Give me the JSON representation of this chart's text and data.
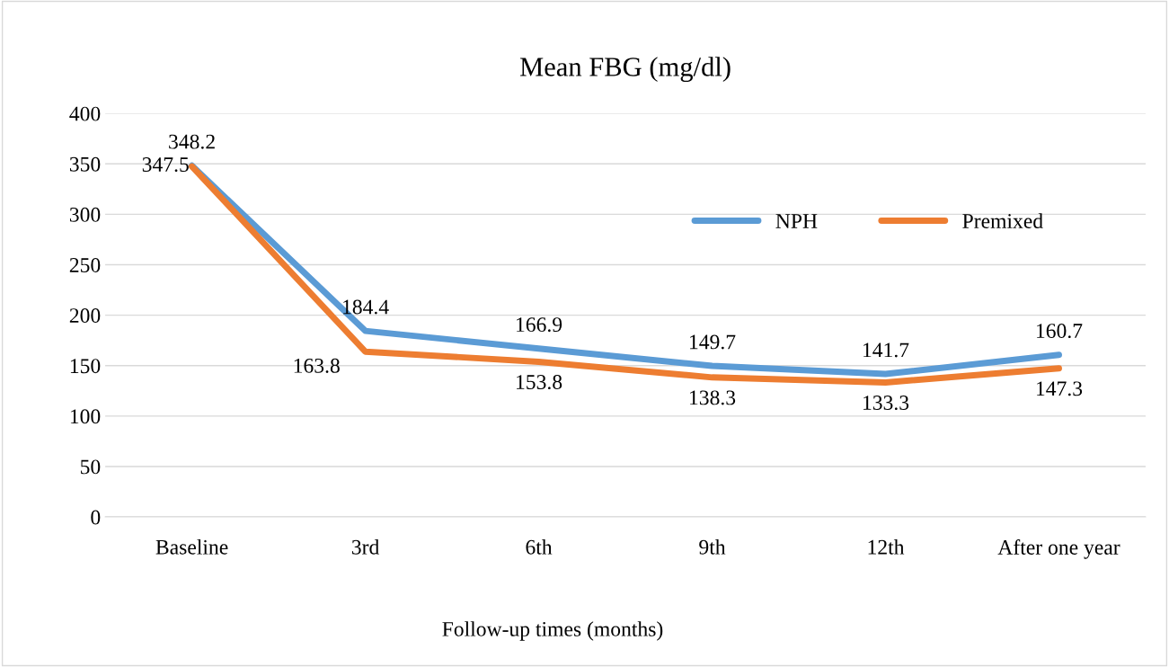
{
  "chart_data": {
    "type": "line",
    "title": "Mean FBG (mg/dl)",
    "xlabel": "Follow-up times (months)",
    "categories": [
      "Baseline",
      "3rd",
      "6th",
      "9th",
      "12th",
      "After one year"
    ],
    "series": [
      {
        "name": "NPH",
        "color": "#5b9bd5",
        "values": [
          348.2,
          184.4,
          166.9,
          149.7,
          141.7,
          160.7
        ]
      },
      {
        "name": "Premixed",
        "color": "#ed7d31",
        "values": [
          347.5,
          163.8,
          153.8,
          138.3,
          133.3,
          147.3
        ]
      }
    ],
    "ylim": [
      0,
      400
    ],
    "yticks": [
      0,
      50,
      100,
      150,
      200,
      250,
      300,
      350,
      400
    ],
    "grid": "y",
    "legend": "top right",
    "data_labels": true,
    "marker": "none",
    "line_style": "solid"
  }
}
